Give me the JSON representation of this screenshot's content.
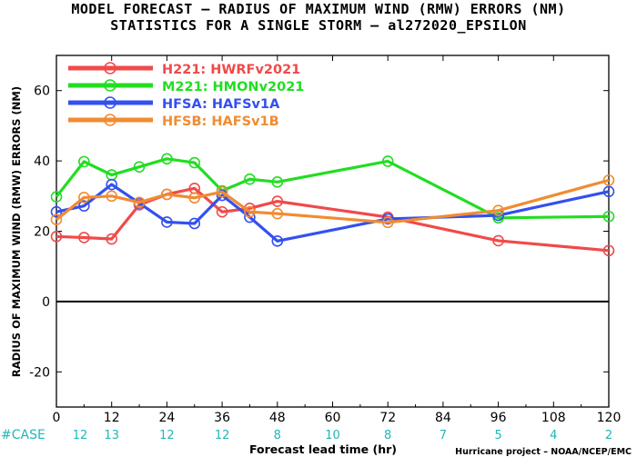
{
  "header": {
    "title_line1": "MODEL FORECAST – RADIUS OF MAXIMUM WIND (RMW) ERRORS (NM)",
    "title_line2": "STATISTICS FOR A SINGLE STORM – al272020_EPSILON"
  },
  "footer": {
    "case_label": "#CASE",
    "credit": "Hurricane project – NOAA/NCEP/EMC"
  },
  "colors": {
    "case_counts": "#20b8b8",
    "zero_line": "#000000"
  },
  "chart_data": {
    "type": "line",
    "xlabel": "Forecast lead time (hr)",
    "ylabel": "RADIUS OF MAXIMUM WIND (RMW) ERRORS (NM)",
    "xlim": [
      0,
      120
    ],
    "ylim": [
      -30,
      70
    ],
    "xticks": [
      0,
      12,
      24,
      36,
      48,
      60,
      72,
      84,
      96,
      108,
      120
    ],
    "yticks": [
      -20,
      0,
      20,
      40,
      60
    ],
    "grid": false,
    "legend_position": "top-left",
    "cases": [
      {
        "x": 0,
        "label": "12"
      },
      {
        "x": 12,
        "label": "13"
      },
      {
        "x": 24,
        "label": "12"
      },
      {
        "x": 36,
        "label": "12"
      },
      {
        "x": 48,
        "label": "8"
      },
      {
        "x": 60,
        "label": "10"
      },
      {
        "x": 72,
        "label": "8"
      },
      {
        "x": 84,
        "label": "7"
      },
      {
        "x": 96,
        "label": "5"
      },
      {
        "x": 108,
        "label": "4"
      },
      {
        "x": 120,
        "label": "2"
      }
    ],
    "series": [
      {
        "name": "H221:  HWRFv2021",
        "color": "#f04a4a",
        "x": [
          0,
          6,
          12,
          18,
          24,
          30,
          36,
          42,
          48,
          72,
          96,
          120
        ],
        "y": [
          18.5,
          18.2,
          17.8,
          27.5,
          30.5,
          32.2,
          25.5,
          26.5,
          28.5,
          24.0,
          17.3,
          14.5
        ]
      },
      {
        "name": "M221:  HMONv2021",
        "color": "#22dd22",
        "x": [
          0,
          6,
          12,
          18,
          24,
          30,
          36,
          42,
          48,
          72,
          96,
          120
        ],
        "y": [
          29.8,
          39.8,
          36.0,
          38.3,
          40.6,
          39.5,
          31.5,
          34.8,
          34.0,
          39.9,
          23.8,
          24.2
        ]
      },
      {
        "name": "HFSA:  HAFSv1A",
        "color": "#3350f0",
        "x": [
          0,
          6,
          12,
          18,
          24,
          30,
          36,
          42,
          48,
          72,
          96,
          120
        ],
        "y": [
          25.5,
          27.2,
          33.3,
          28.0,
          22.6,
          22.2,
          30.2,
          24.0,
          17.2,
          23.5,
          24.5,
          31.3
        ]
      },
      {
        "name": "HFSB:  HAFSv1B",
        "color": "#f08c32",
        "x": [
          0,
          6,
          12,
          18,
          24,
          30,
          36,
          42,
          48,
          72,
          96,
          120
        ],
        "y": [
          23.3,
          29.6,
          30.0,
          28.2,
          30.5,
          29.5,
          31.2,
          25.5,
          25.0,
          22.5,
          25.9,
          34.5
        ]
      }
    ]
  }
}
